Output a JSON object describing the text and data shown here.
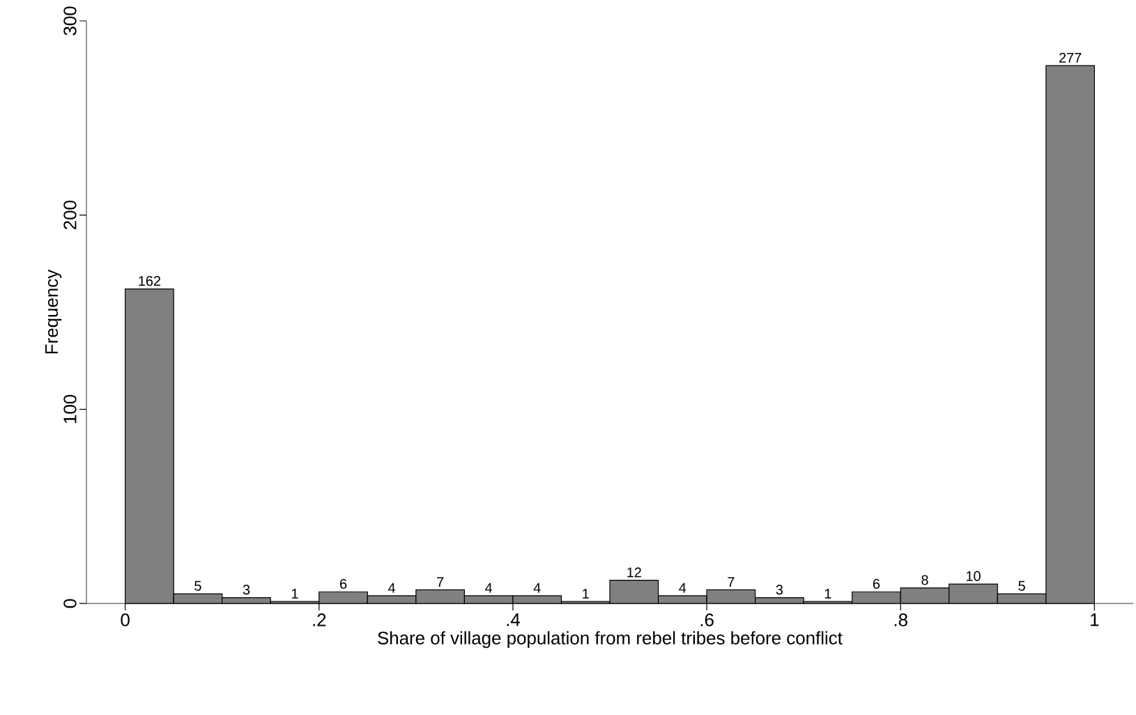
{
  "chart_data": {
    "type": "histogram",
    "xlabel": "Share of village population from rebel tribes before conflict",
    "ylabel": "Frequency",
    "bins": [
      0,
      0.05,
      0.1,
      0.15,
      0.2,
      0.25,
      0.3,
      0.35,
      0.4,
      0.45,
      0.5,
      0.55,
      0.6,
      0.65,
      0.7,
      0.75,
      0.8,
      0.85,
      0.9,
      0.95,
      1
    ],
    "values": [
      162,
      5,
      3,
      1,
      6,
      4,
      7,
      4,
      4,
      1,
      12,
      4,
      7,
      3,
      1,
      6,
      8,
      10,
      5,
      277
    ],
    "color": "#808080",
    "data_labels": true,
    "xlim": [
      -0.04,
      1.04
    ],
    "ylim": [
      0,
      300
    ],
    "xticks": [
      0,
      {
        "value": 0.2,
        "label": ".2"
      },
      {
        "value": 0.4,
        "label": ".4"
      },
      {
        "value": 0.6,
        "label": ".6"
      },
      {
        "value": 0.8,
        "label": ".8"
      },
      1
    ],
    "yticks": [
      0,
      100,
      200,
      300
    ],
    "grid": false
  }
}
